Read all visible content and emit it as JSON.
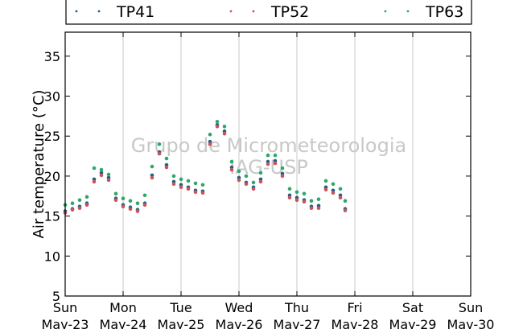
{
  "chart_data": {
    "type": "scatter",
    "title": "",
    "xlabel": "",
    "ylabel": "Air temperature (°C)",
    "ylim": [
      5,
      38
    ],
    "yticks": [
      5,
      10,
      15,
      20,
      25,
      30,
      35
    ],
    "xlim": [
      "2016-05-23T00:00",
      "2016-05-30T00:00"
    ],
    "xticks": [
      {
        "day": "Sun",
        "date": "May-23"
      },
      {
        "day": "Mon",
        "date": "May-24"
      },
      {
        "day": "Tue",
        "date": "May-25"
      },
      {
        "day": "Wed",
        "date": "May-26"
      },
      {
        "day": "Thu",
        "date": "May-27"
      },
      {
        "day": "Fri",
        "date": "May-28"
      },
      {
        "day": "Sat",
        "date": "May-29"
      },
      {
        "day": "Sun",
        "date": "May-30"
      }
    ],
    "grid": "vertical",
    "legend": "top",
    "watermark": [
      "Grupo de Micrometeorologia",
      "IAG-USP"
    ],
    "series": [
      {
        "name": "TP41",
        "color": "#1f5f8b",
        "x": [
          "2016-05-23T00:00",
          "2016-05-23T03:00",
          "2016-05-23T06:00",
          "2016-05-23T09:00",
          "2016-05-23T12:00",
          "2016-05-23T15:00",
          "2016-05-23T18:00",
          "2016-05-23T21:00",
          "2016-05-24T00:00",
          "2016-05-24T03:00",
          "2016-05-24T06:00",
          "2016-05-24T09:00",
          "2016-05-24T12:00",
          "2016-05-24T15:00",
          "2016-05-24T18:00",
          "2016-05-24T21:00",
          "2016-05-25T00:00",
          "2016-05-25T03:00",
          "2016-05-25T06:00",
          "2016-05-25T09:00",
          "2016-05-25T12:00",
          "2016-05-25T15:00",
          "2016-05-25T18:00",
          "2016-05-25T21:00",
          "2016-05-26T00:00",
          "2016-05-26T03:00",
          "2016-05-26T06:00",
          "2016-05-26T09:00",
          "2016-05-26T12:00",
          "2016-05-26T15:00",
          "2016-05-26T18:00",
          "2016-05-26T21:00",
          "2016-05-27T00:00",
          "2016-05-27T03:00",
          "2016-05-27T06:00",
          "2016-05-27T09:00",
          "2016-05-27T12:00",
          "2016-05-27T15:00",
          "2016-05-27T18:00",
          "2016-05-27T20:00"
        ],
        "y": [
          15.6,
          15.9,
          16.2,
          16.6,
          19.6,
          20.4,
          19.8,
          17.2,
          16.4,
          16.1,
          15.8,
          16.6,
          20.1,
          23.0,
          21.4,
          19.3,
          18.9,
          18.6,
          18.2,
          18.1,
          24.3,
          26.4,
          25.6,
          21.1,
          19.8,
          19.2,
          18.6,
          19.6,
          21.8,
          21.9,
          20.3,
          17.6,
          17.3,
          17.0,
          16.2,
          16.3,
          18.6,
          18.2,
          17.6,
          15.9
        ]
      },
      {
        "name": "TP52",
        "color": "#c9555a",
        "x": [
          "2016-05-23T00:00",
          "2016-05-23T03:00",
          "2016-05-23T06:00",
          "2016-05-23T09:00",
          "2016-05-23T12:00",
          "2016-05-23T15:00",
          "2016-05-23T18:00",
          "2016-05-23T21:00",
          "2016-05-24T00:00",
          "2016-05-24T03:00",
          "2016-05-24T06:00",
          "2016-05-24T09:00",
          "2016-05-24T12:00",
          "2016-05-24T15:00",
          "2016-05-24T18:00",
          "2016-05-24T21:00",
          "2016-05-25T00:00",
          "2016-05-25T03:00",
          "2016-05-25T06:00",
          "2016-05-25T09:00",
          "2016-05-25T12:00",
          "2016-05-25T15:00",
          "2016-05-25T18:00",
          "2016-05-25T21:00",
          "2016-05-26T00:00",
          "2016-05-26T03:00",
          "2016-05-26T06:00",
          "2016-05-26T09:00",
          "2016-05-26T12:00",
          "2016-05-26T15:00",
          "2016-05-26T18:00",
          "2016-05-26T21:00",
          "2016-05-27T00:00",
          "2016-05-27T03:00",
          "2016-05-27T06:00",
          "2016-05-27T09:00",
          "2016-05-27T12:00",
          "2016-05-27T15:00",
          "2016-05-27T18:00",
          "2016-05-27T20:00"
        ],
        "y": [
          15.4,
          15.8,
          16.0,
          16.4,
          19.3,
          20.1,
          19.5,
          17.0,
          16.2,
          15.9,
          15.6,
          16.4,
          19.8,
          22.8,
          21.1,
          19.0,
          18.6,
          18.4,
          18.0,
          17.9,
          24.0,
          26.2,
          25.3,
          20.8,
          19.5,
          19.0,
          18.4,
          19.3,
          21.5,
          21.6,
          20.0,
          17.3,
          17.0,
          16.8,
          16.0,
          16.0,
          18.3,
          17.9,
          17.3,
          15.7
        ]
      },
      {
        "name": "TP63",
        "color": "#2ea86a",
        "x": [
          "2016-05-23T00:00",
          "2016-05-23T03:00",
          "2016-05-23T06:00",
          "2016-05-23T09:00",
          "2016-05-23T12:00",
          "2016-05-23T15:00",
          "2016-05-23T18:00",
          "2016-05-23T21:00",
          "2016-05-24T00:00",
          "2016-05-24T03:00",
          "2016-05-24T06:00",
          "2016-05-24T09:00",
          "2016-05-24T12:00",
          "2016-05-24T15:00",
          "2016-05-24T18:00",
          "2016-05-24T21:00",
          "2016-05-25T00:00",
          "2016-05-25T03:00",
          "2016-05-25T06:00",
          "2016-05-25T09:00",
          "2016-05-25T12:00",
          "2016-05-25T15:00",
          "2016-05-25T18:00",
          "2016-05-25T21:00",
          "2016-05-26T00:00",
          "2016-05-26T03:00",
          "2016-05-26T06:00",
          "2016-05-26T09:00",
          "2016-05-26T12:00",
          "2016-05-26T15:00",
          "2016-05-26T18:00",
          "2016-05-26T21:00",
          "2016-05-27T00:00",
          "2016-05-27T03:00",
          "2016-05-27T06:00",
          "2016-05-27T09:00",
          "2016-05-27T12:00",
          "2016-05-27T15:00",
          "2016-05-27T18:00",
          "2016-05-27T20:00"
        ],
        "y": [
          16.4,
          16.6,
          17.0,
          17.4,
          21.0,
          20.8,
          20.2,
          17.8,
          17.2,
          16.9,
          16.6,
          17.6,
          21.2,
          24.0,
          22.2,
          20.0,
          19.6,
          19.4,
          19.1,
          18.9,
          25.2,
          26.8,
          26.2,
          21.8,
          20.6,
          20.0,
          19.2,
          20.4,
          22.6,
          22.6,
          21.0,
          18.4,
          18.0,
          17.8,
          16.9,
          17.1,
          19.4,
          19.0,
          18.4,
          16.9
        ]
      }
    ]
  }
}
